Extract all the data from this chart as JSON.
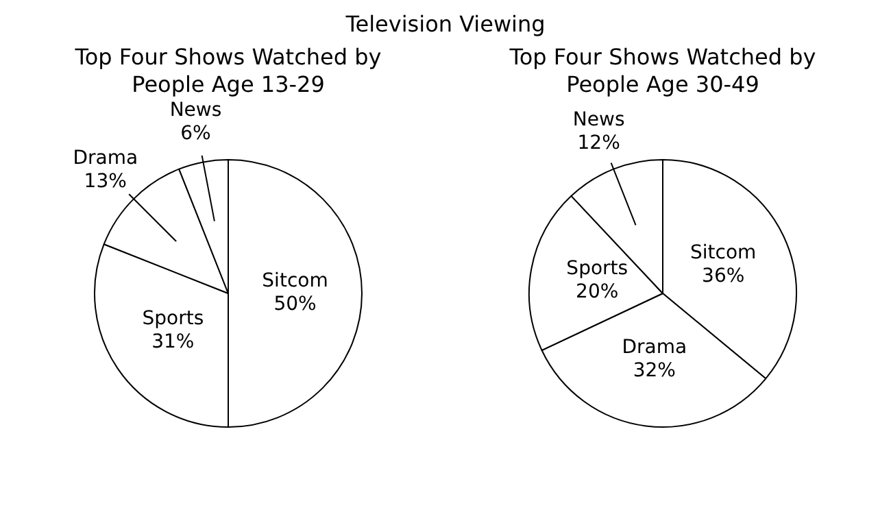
{
  "chart_data": [
    {
      "type": "pie",
      "title": "Top Four Shows Watched by People Age 13-29",
      "annotations": [
        "Television Viewing"
      ],
      "categories": [
        "Sitcom",
        "Sports",
        "Drama",
        "News"
      ],
      "values": [
        50,
        31,
        13,
        6
      ],
      "colors": [
        "#ffffff",
        "#ffffff",
        "#ffffff",
        "#ffffff"
      ],
      "value_labels": [
        "50%",
        "31%",
        "13%",
        "6%"
      ],
      "legend": false
    },
    {
      "type": "pie",
      "title": "Top Four Shows Watched by People Age 30-49",
      "categories": [
        "Sitcom",
        "Drama",
        "Sports",
        "News"
      ],
      "values": [
        36,
        32,
        20,
        12
      ],
      "colors": [
        "#ffffff",
        "#ffffff",
        "#ffffff",
        "#ffffff"
      ],
      "value_labels": [
        "36%",
        "32%",
        "20%",
        "12%"
      ],
      "legend": false
    }
  ]
}
